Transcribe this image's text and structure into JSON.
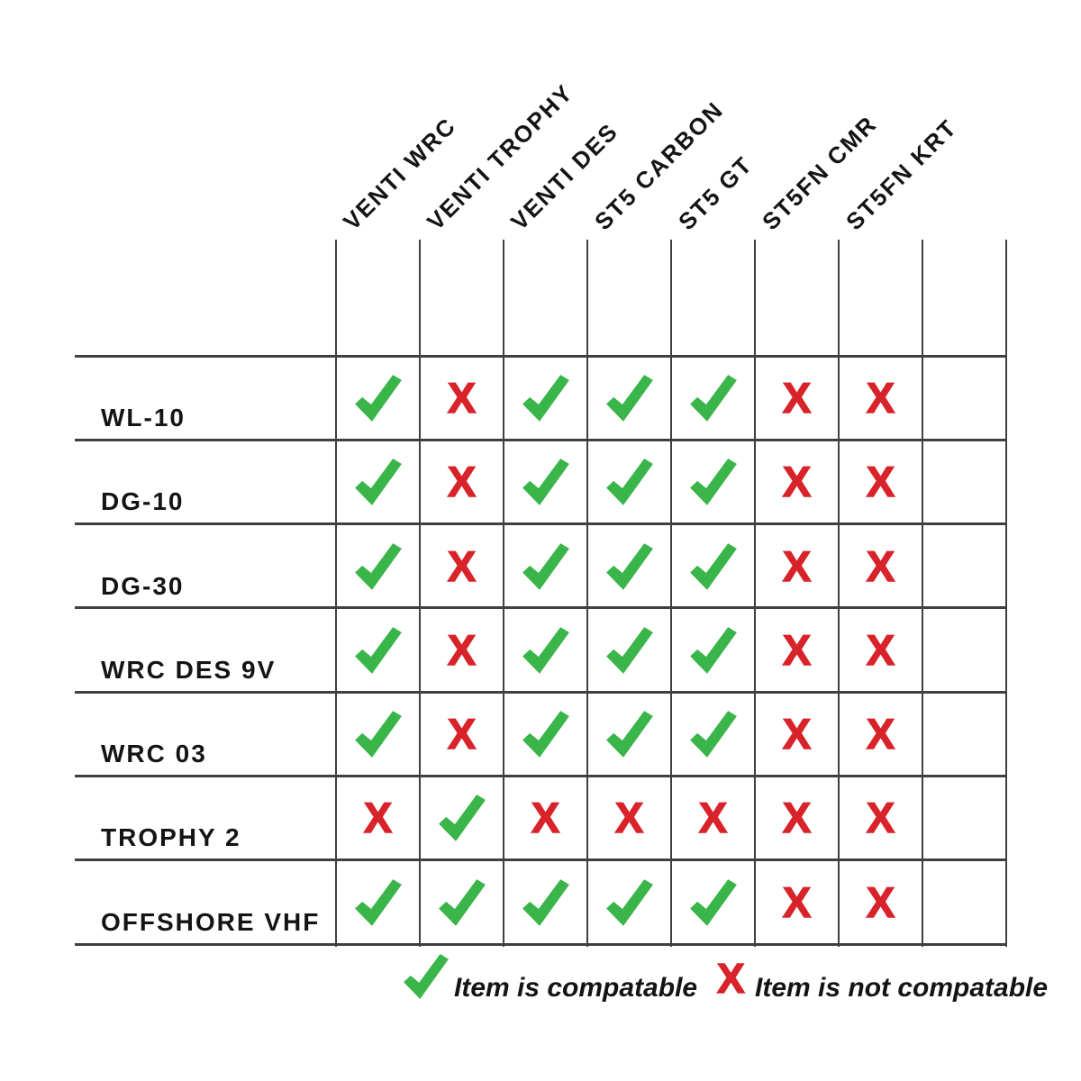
{
  "chart_data": {
    "type": "table",
    "columns": [
      "VENTI WRC",
      "VENTI TROPHY",
      "VENTI DES",
      "ST5 CARBON",
      "ST5 GT",
      "ST5FN CMR",
      "ST5FN KRT"
    ],
    "rows": [
      {
        "label": "WL-10",
        "values": [
          "yes",
          "no",
          "yes",
          "yes",
          "yes",
          "no",
          "no"
        ]
      },
      {
        "label": "DG-10",
        "values": [
          "yes",
          "no",
          "yes",
          "yes",
          "yes",
          "no",
          "no"
        ]
      },
      {
        "label": "DG-30",
        "values": [
          "yes",
          "no",
          "yes",
          "yes",
          "yes",
          "no",
          "no"
        ]
      },
      {
        "label": "WRC DES 9V",
        "values": [
          "yes",
          "no",
          "yes",
          "yes",
          "yes",
          "no",
          "no"
        ]
      },
      {
        "label": "WRC 03",
        "values": [
          "yes",
          "no",
          "yes",
          "yes",
          "yes",
          "no",
          "no"
        ]
      },
      {
        "label": "TROPHY 2",
        "values": [
          "no",
          "yes",
          "no",
          "no",
          "no",
          "no",
          "no"
        ]
      },
      {
        "label": "OFFSHORE VHF",
        "values": [
          "yes",
          "yes",
          "yes",
          "yes",
          "yes",
          "no",
          "no"
        ]
      }
    ],
    "legend": [
      {
        "symbol": "check",
        "label": "Item is compatable"
      },
      {
        "symbol": "x",
        "label": "Item is not compatable"
      }
    ]
  },
  "marks": {
    "not_compatible_glyph": "X"
  },
  "colors": {
    "compatible_green": "#3ab54a",
    "not_compatible_red": "#d8232a",
    "grid_line": "#404040",
    "text": "#141414"
  }
}
